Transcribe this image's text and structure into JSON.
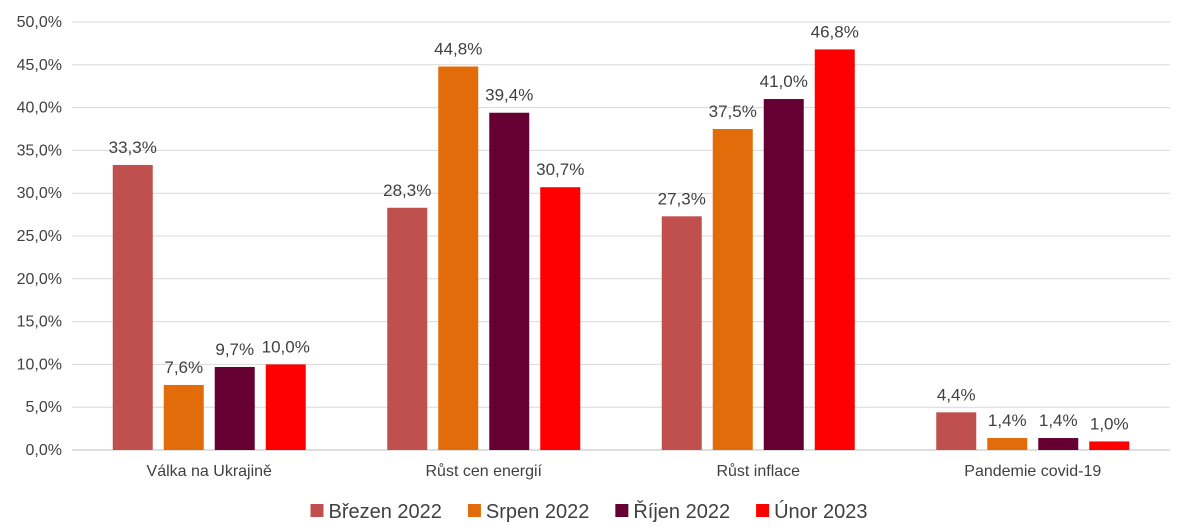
{
  "chart_data": {
    "type": "bar",
    "title": "",
    "xlabel": "",
    "ylabel": "",
    "categories": [
      "Válka na Ukrajině",
      "Růst cen energií",
      "Růst inflace",
      "Pandemie covid-19"
    ],
    "series": [
      {
        "name": "Březen 2022",
        "color": "#C0504D",
        "values": [
          33.3,
          28.3,
          27.3,
          4.4
        ],
        "labels": [
          "33,3%",
          "28,3%",
          "27,3%",
          "4,4%"
        ]
      },
      {
        "name": "Srpen 2022",
        "color": "#E36C0A",
        "values": [
          7.6,
          44.8,
          37.5,
          1.4
        ],
        "labels": [
          "7,6%",
          "44,8%",
          "37,5%",
          "1,4%"
        ]
      },
      {
        "name": "Říjen 2022",
        "color": "#660033",
        "values": [
          9.7,
          39.4,
          41.0,
          1.4
        ],
        "labels": [
          "9,7%",
          "39,4%",
          "41,0%",
          "1,4%"
        ]
      },
      {
        "name": "Únor 2023",
        "color": "#FF0000",
        "values": [
          10.0,
          30.7,
          46.8,
          1.0
        ],
        "labels": [
          "10,0%",
          "30,7%",
          "46,8%",
          "1,0%"
        ]
      }
    ],
    "ylim": [
      0,
      50
    ],
    "yticks": [
      0,
      5,
      10,
      15,
      20,
      25,
      30,
      35,
      40,
      45,
      50
    ],
    "ytick_labels": [
      "0,0%",
      "5,0%",
      "10,0%",
      "15,0%",
      "20,0%",
      "25,0%",
      "30,0%",
      "35,0%",
      "40,0%",
      "45,0%",
      "50,0%"
    ],
    "grid": true,
    "legend_position": "bottom"
  }
}
